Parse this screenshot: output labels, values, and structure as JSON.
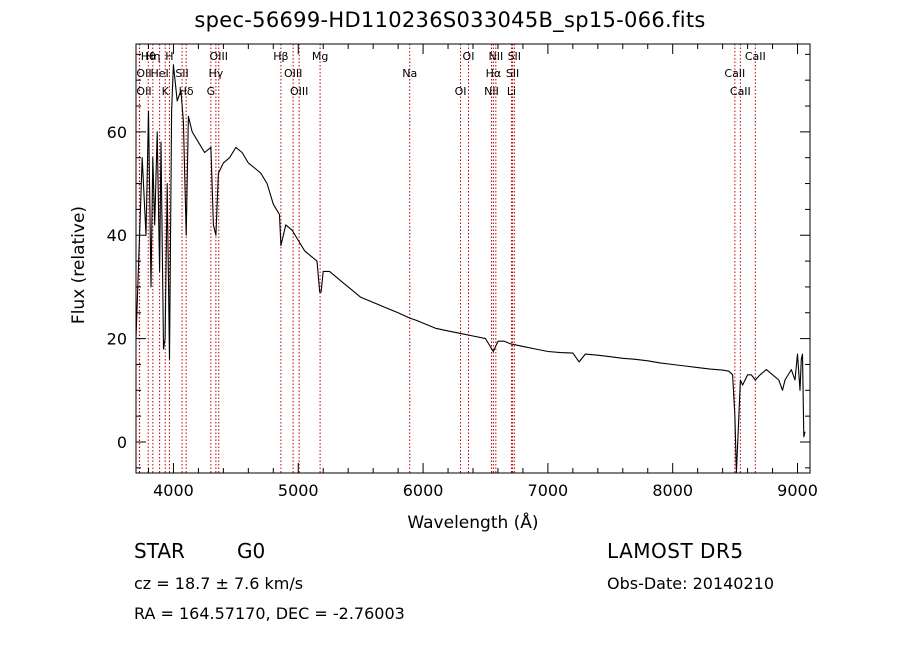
{
  "chart_data": {
    "type": "line",
    "title": "spec-56699-HD110236S033045B_sp15-066.fits",
    "xlabel": "Wavelength (Å)",
    "ylabel": "Flux (relative)",
    "xlim": [
      3700,
      9100
    ],
    "ylim": [
      -6,
      77
    ],
    "x_ticks": [
      4000,
      5000,
      6000,
      7000,
      8000,
      9000
    ],
    "y_ticks": [
      0,
      20,
      40,
      60
    ],
    "grid": false,
    "series": [
      {
        "color": "#000000",
        "x": [
          3700,
          3720,
          3750,
          3780,
          3800,
          3820,
          3835,
          3850,
          3870,
          3889,
          3900,
          3920,
          3933,
          3950,
          3968,
          3985,
          4000,
          4030,
          4060,
          4080,
          4102,
          4120,
          4150,
          4200,
          4250,
          4300,
          4320,
          4340,
          4360,
          4400,
          4450,
          4500,
          4550,
          4600,
          4650,
          4700,
          4750,
          4800,
          4850,
          4861,
          4900,
          4950,
          5000,
          5050,
          5100,
          5150,
          5172,
          5183,
          5200,
          5250,
          5300,
          5350,
          5400,
          5450,
          5500,
          5600,
          5700,
          5800,
          5890,
          5950,
          6000,
          6100,
          6200,
          6300,
          6400,
          6500,
          6563,
          6600,
          6650,
          6700,
          6800,
          6900,
          7000,
          7100,
          7200,
          7250,
          7300,
          7400,
          7500,
          7600,
          7700,
          7800,
          7900,
          8000,
          8100,
          8200,
          8300,
          8400,
          8450,
          8480,
          8498,
          8510,
          8542,
          8560,
          8600,
          8630,
          8662,
          8700,
          8750,
          8800,
          8850,
          8880,
          8900,
          8950,
          8980,
          9000,
          9020,
          9030,
          9040,
          9050,
          9060
        ],
        "y": [
          20,
          34,
          55,
          40,
          64,
          30,
          55,
          42,
          60,
          33,
          58,
          18,
          20,
          50,
          16,
          64,
          73,
          66,
          68,
          62,
          40,
          63,
          60,
          58,
          56,
          57,
          42,
          40,
          52,
          54,
          55,
          57,
          56,
          54,
          53,
          52,
          50,
          46,
          44,
          38,
          42,
          41,
          39,
          37,
          36,
          35,
          29,
          29,
          33,
          33,
          32,
          31,
          30,
          29,
          28,
          27,
          26,
          25,
          24,
          23.5,
          23,
          22,
          21.5,
          21,
          20.5,
          20,
          17.5,
          19.5,
          19.5,
          19,
          18.5,
          18,
          17.5,
          17.3,
          17.2,
          15.5,
          17,
          16.8,
          16.5,
          16.2,
          16,
          15.7,
          15.3,
          15,
          14.7,
          14.4,
          14.1,
          13.9,
          13.7,
          13,
          5,
          -6,
          12,
          11,
          13,
          13,
          12,
          13,
          14,
          13,
          12,
          10,
          12,
          14,
          12,
          17,
          10,
          16,
          17,
          1,
          2
        ]
      }
    ],
    "lines": [
      {
        "name": "Hθ",
        "x": 3798
      },
      {
        "name": "OII",
        "x": 3727
      },
      {
        "name": "OII",
        "x": 3729
      },
      {
        "name": "Hη",
        "x": 3835
      },
      {
        "name": "HeI",
        "x": 3889
      },
      {
        "name": "K",
        "x": 3934
      },
      {
        "name": "H",
        "x": 3968
      },
      {
        "name": "SII",
        "x": 4069
      },
      {
        "name": "Hδ",
        "x": 4102
      },
      {
        "name": "OIII",
        "x": 4363
      },
      {
        "name": "Hγ",
        "x": 4340
      },
      {
        "name": "G",
        "x": 4300
      },
      {
        "name": "Hβ",
        "x": 4861
      },
      {
        "name": "OIII",
        "x": 4959
      },
      {
        "name": "OIII",
        "x": 5007
      },
      {
        "name": "Mg",
        "x": 5175
      },
      {
        "name": "Na",
        "x": 5893
      },
      {
        "name": "OI",
        "x": 6300
      },
      {
        "name": "OI",
        "x": 6364
      },
      {
        "name": "Hα",
        "x": 6563
      },
      {
        "name": "NII",
        "x": 6548
      },
      {
        "name": "NII",
        "x": 6583
      },
      {
        "name": "SII",
        "x": 6717
      },
      {
        "name": "Li",
        "x": 6708
      },
      {
        "name": "SII",
        "x": 6731
      },
      {
        "name": "CaII",
        "x": 8498
      },
      {
        "name": "CaII",
        "x": 8542
      },
      {
        "name": "CaII",
        "x": 8662
      }
    ]
  },
  "footer": {
    "class_label": "STAR",
    "subclass_label": "G0",
    "survey_label": "LAMOST DR5",
    "cz_text": "cz = 18.7 ± 7.6 km/s",
    "obs_date_text": "Obs-Date: 20140210",
    "radec_text": "RA = 164.57170, DEC =  -2.76003"
  }
}
